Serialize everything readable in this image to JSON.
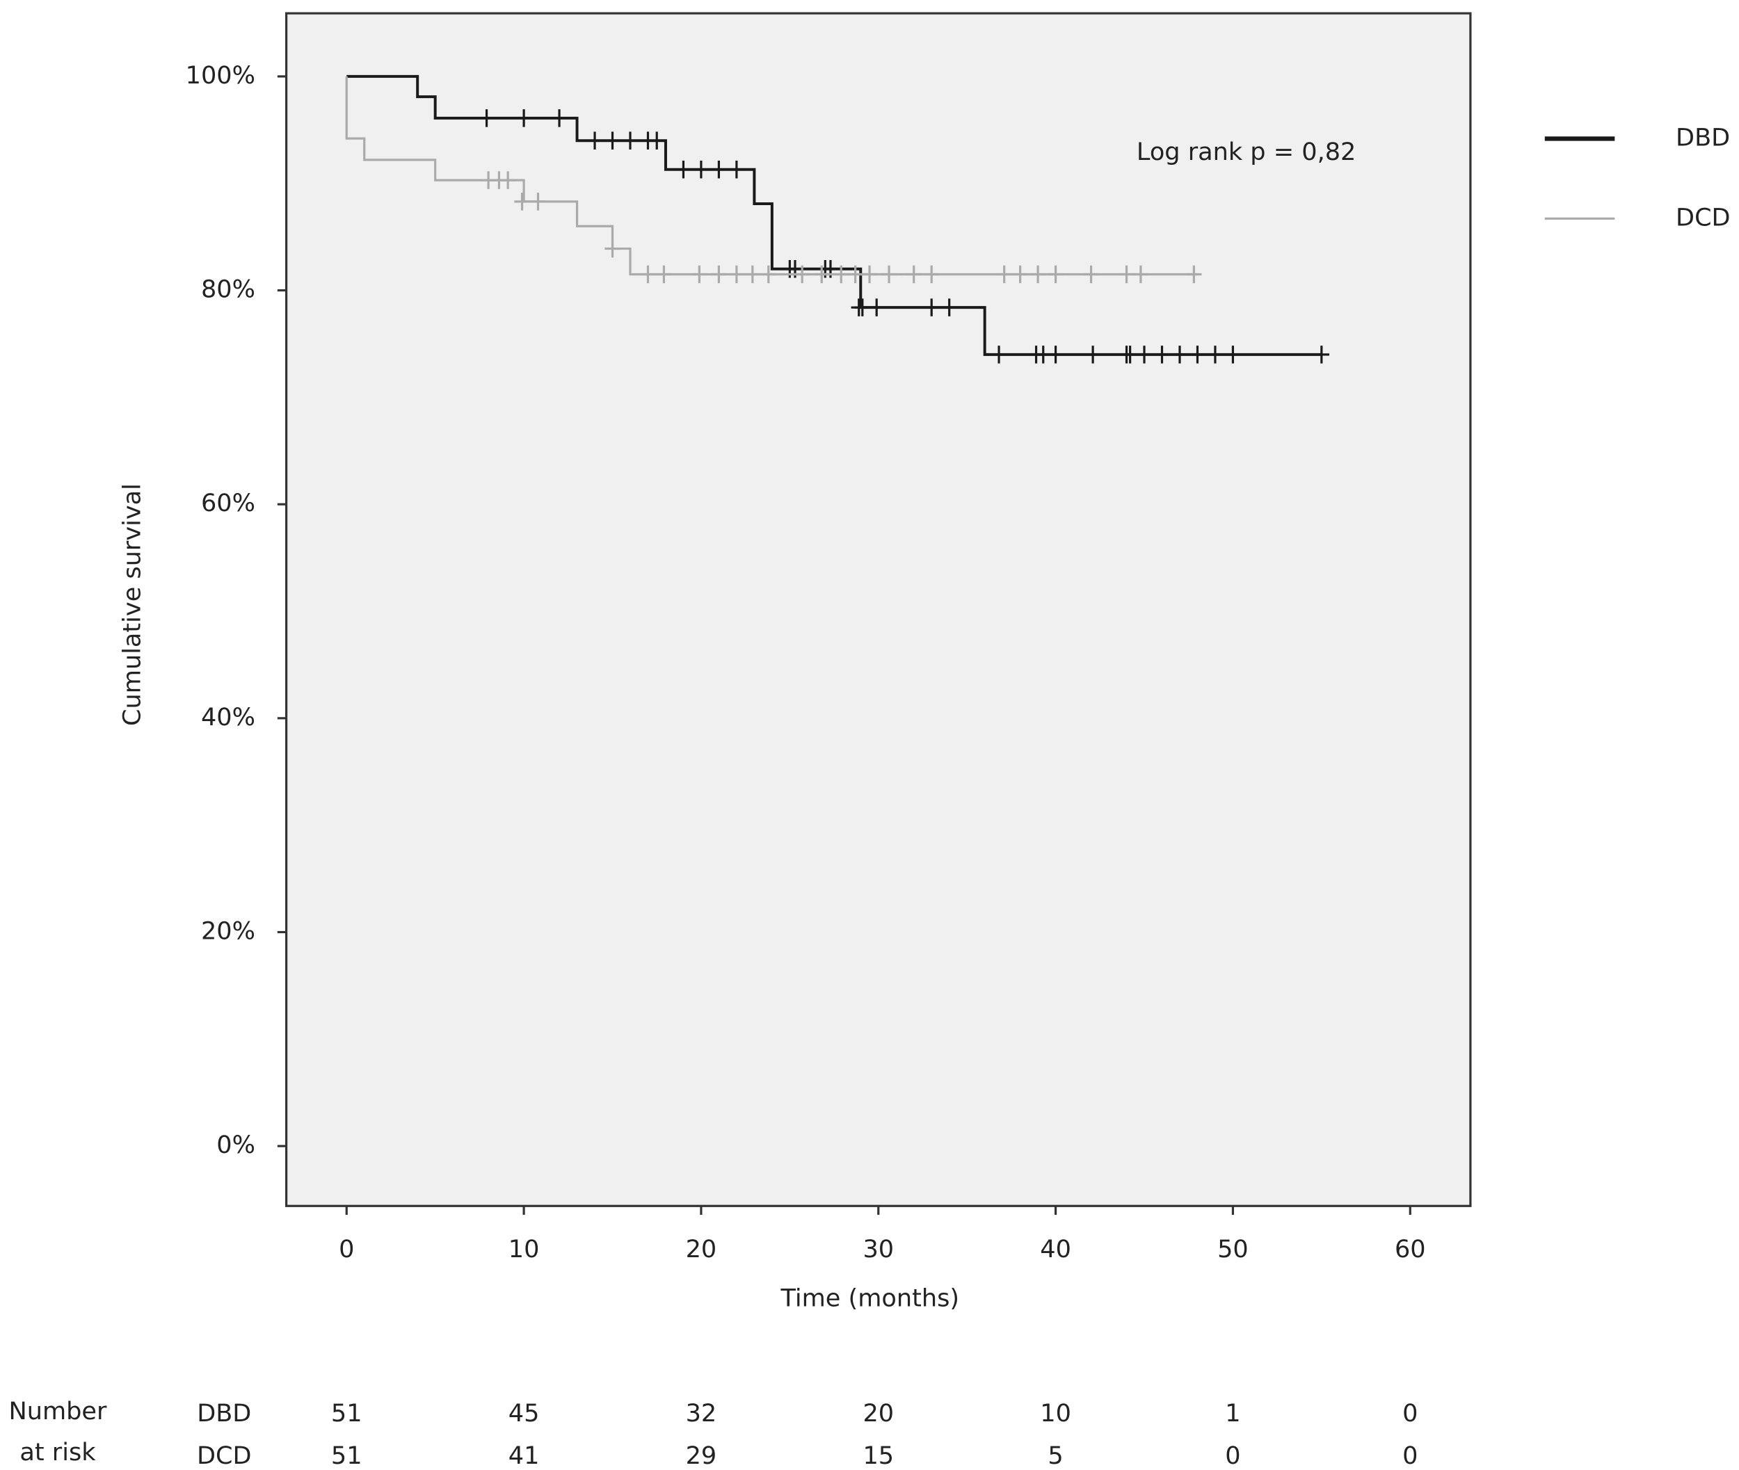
{
  "chart_data": {
    "type": "step",
    "x_label": "Time (months)",
    "y_label": "Cumulative survival",
    "annotation": "Log rank p = 0,82",
    "xlim": [
      -3.4,
      63.4
    ],
    "ylim": [
      -5.6,
      105.9
    ],
    "xticks": [
      0,
      10,
      20,
      30,
      40,
      50,
      60
    ],
    "yticks": [
      {
        "value": 0,
        "label": "0%"
      },
      {
        "value": 20,
        "label": "20%"
      },
      {
        "value": 40,
        "label": "40%"
      },
      {
        "value": 60,
        "label": "60%"
      },
      {
        "value": 80,
        "label": "80%"
      },
      {
        "value": 100,
        "label": "100%"
      }
    ],
    "series": [
      {
        "name": "DBD",
        "color": "#1a1a1a",
        "x": [
          0,
          4,
          5,
          13,
          18,
          23,
          24,
          29,
          36,
          55
        ],
        "values": [
          100,
          98.1,
          96.1,
          94,
          91.3,
          88.1,
          82,
          78.4,
          74,
          74
        ],
        "censored": {
          "x": [
            7.9,
            10,
            12,
            14,
            15,
            16,
            17,
            17.5,
            19,
            20,
            21,
            22,
            25,
            25.3,
            27,
            27.3,
            28.9,
            29.1,
            29.9,
            33,
            34,
            36.8,
            38.9,
            39.3,
            40,
            42.1,
            44,
            44.2,
            45,
            46,
            47,
            48,
            49,
            50,
            55
          ],
          "values": [
            96.1,
            96.1,
            96.1,
            94,
            94,
            94,
            94,
            94,
            91.3,
            91.3,
            91.3,
            91.3,
            82,
            82,
            82,
            82,
            78.4,
            78.4,
            78.4,
            78.4,
            78.4,
            74,
            74,
            74,
            74,
            74,
            74,
            74,
            74,
            74,
            74,
            74,
            74,
            74,
            74
          ]
        },
        "at_risk": [
          51,
          45,
          32,
          20,
          10,
          1,
          0
        ]
      },
      {
        "name": "DCD",
        "color": "#aaaaaa",
        "x": [
          0,
          0,
          1,
          5,
          10,
          13,
          15,
          16,
          48
        ],
        "values": [
          100,
          94.2,
          92.2,
          90.3,
          88.3,
          86,
          83.9,
          81.5,
          81.5
        ],
        "censored": {
          "x": [
            8,
            8.6,
            9.1,
            9.9,
            10.8,
            15,
            17,
            17.9,
            19.9,
            21,
            22,
            22.9,
            23.8,
            25.7,
            26.8,
            27.9,
            28.7,
            29.5,
            30.6,
            32,
            33,
            37.1,
            38,
            39,
            40,
            42,
            44,
            44.8,
            47.8
          ],
          "values": [
            90.3,
            90.3,
            90.3,
            88.3,
            88.3,
            83.9,
            81.5,
            81.5,
            81.5,
            81.5,
            81.5,
            81.5,
            81.5,
            81.5,
            81.5,
            81.5,
            81.5,
            81.5,
            81.5,
            81.5,
            81.5,
            81.5,
            81.5,
            81.5,
            81.5,
            81.5,
            81.5,
            81.5,
            81.5
          ]
        },
        "at_risk": [
          51,
          41,
          29,
          15,
          5,
          0,
          0
        ]
      }
    ],
    "risk_table_label": [
      "Number",
      "at risk"
    ]
  }
}
